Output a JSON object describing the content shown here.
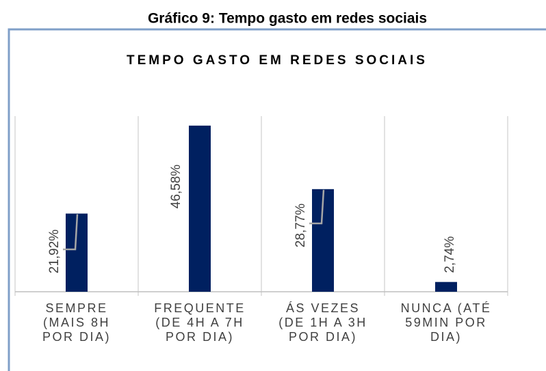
{
  "chart_data": {
    "type": "bar",
    "figure_title": "Gráfico 9: Tempo gasto em redes sociais",
    "title": "TEMPO GASTO EM REDES SOCIAIS",
    "categories": [
      [
        "SEMPRE",
        "(MAIS 8H",
        "POR DIA)"
      ],
      [
        "FREQUENTE",
        "(DE 4H A 7H",
        "POR DIA)"
      ],
      [
        "ÁS VEZES",
        "(DE 1H A 3H",
        "POR DIA)"
      ],
      [
        "NUNCA (ATÉ",
        "59MIN POR",
        "DIA)"
      ]
    ],
    "values": [
      21.92,
      46.58,
      28.77,
      2.74
    ],
    "value_labels": [
      "21,92%",
      "46,58%",
      "28,77%",
      "2,74%"
    ],
    "color": "#002060"
  }
}
